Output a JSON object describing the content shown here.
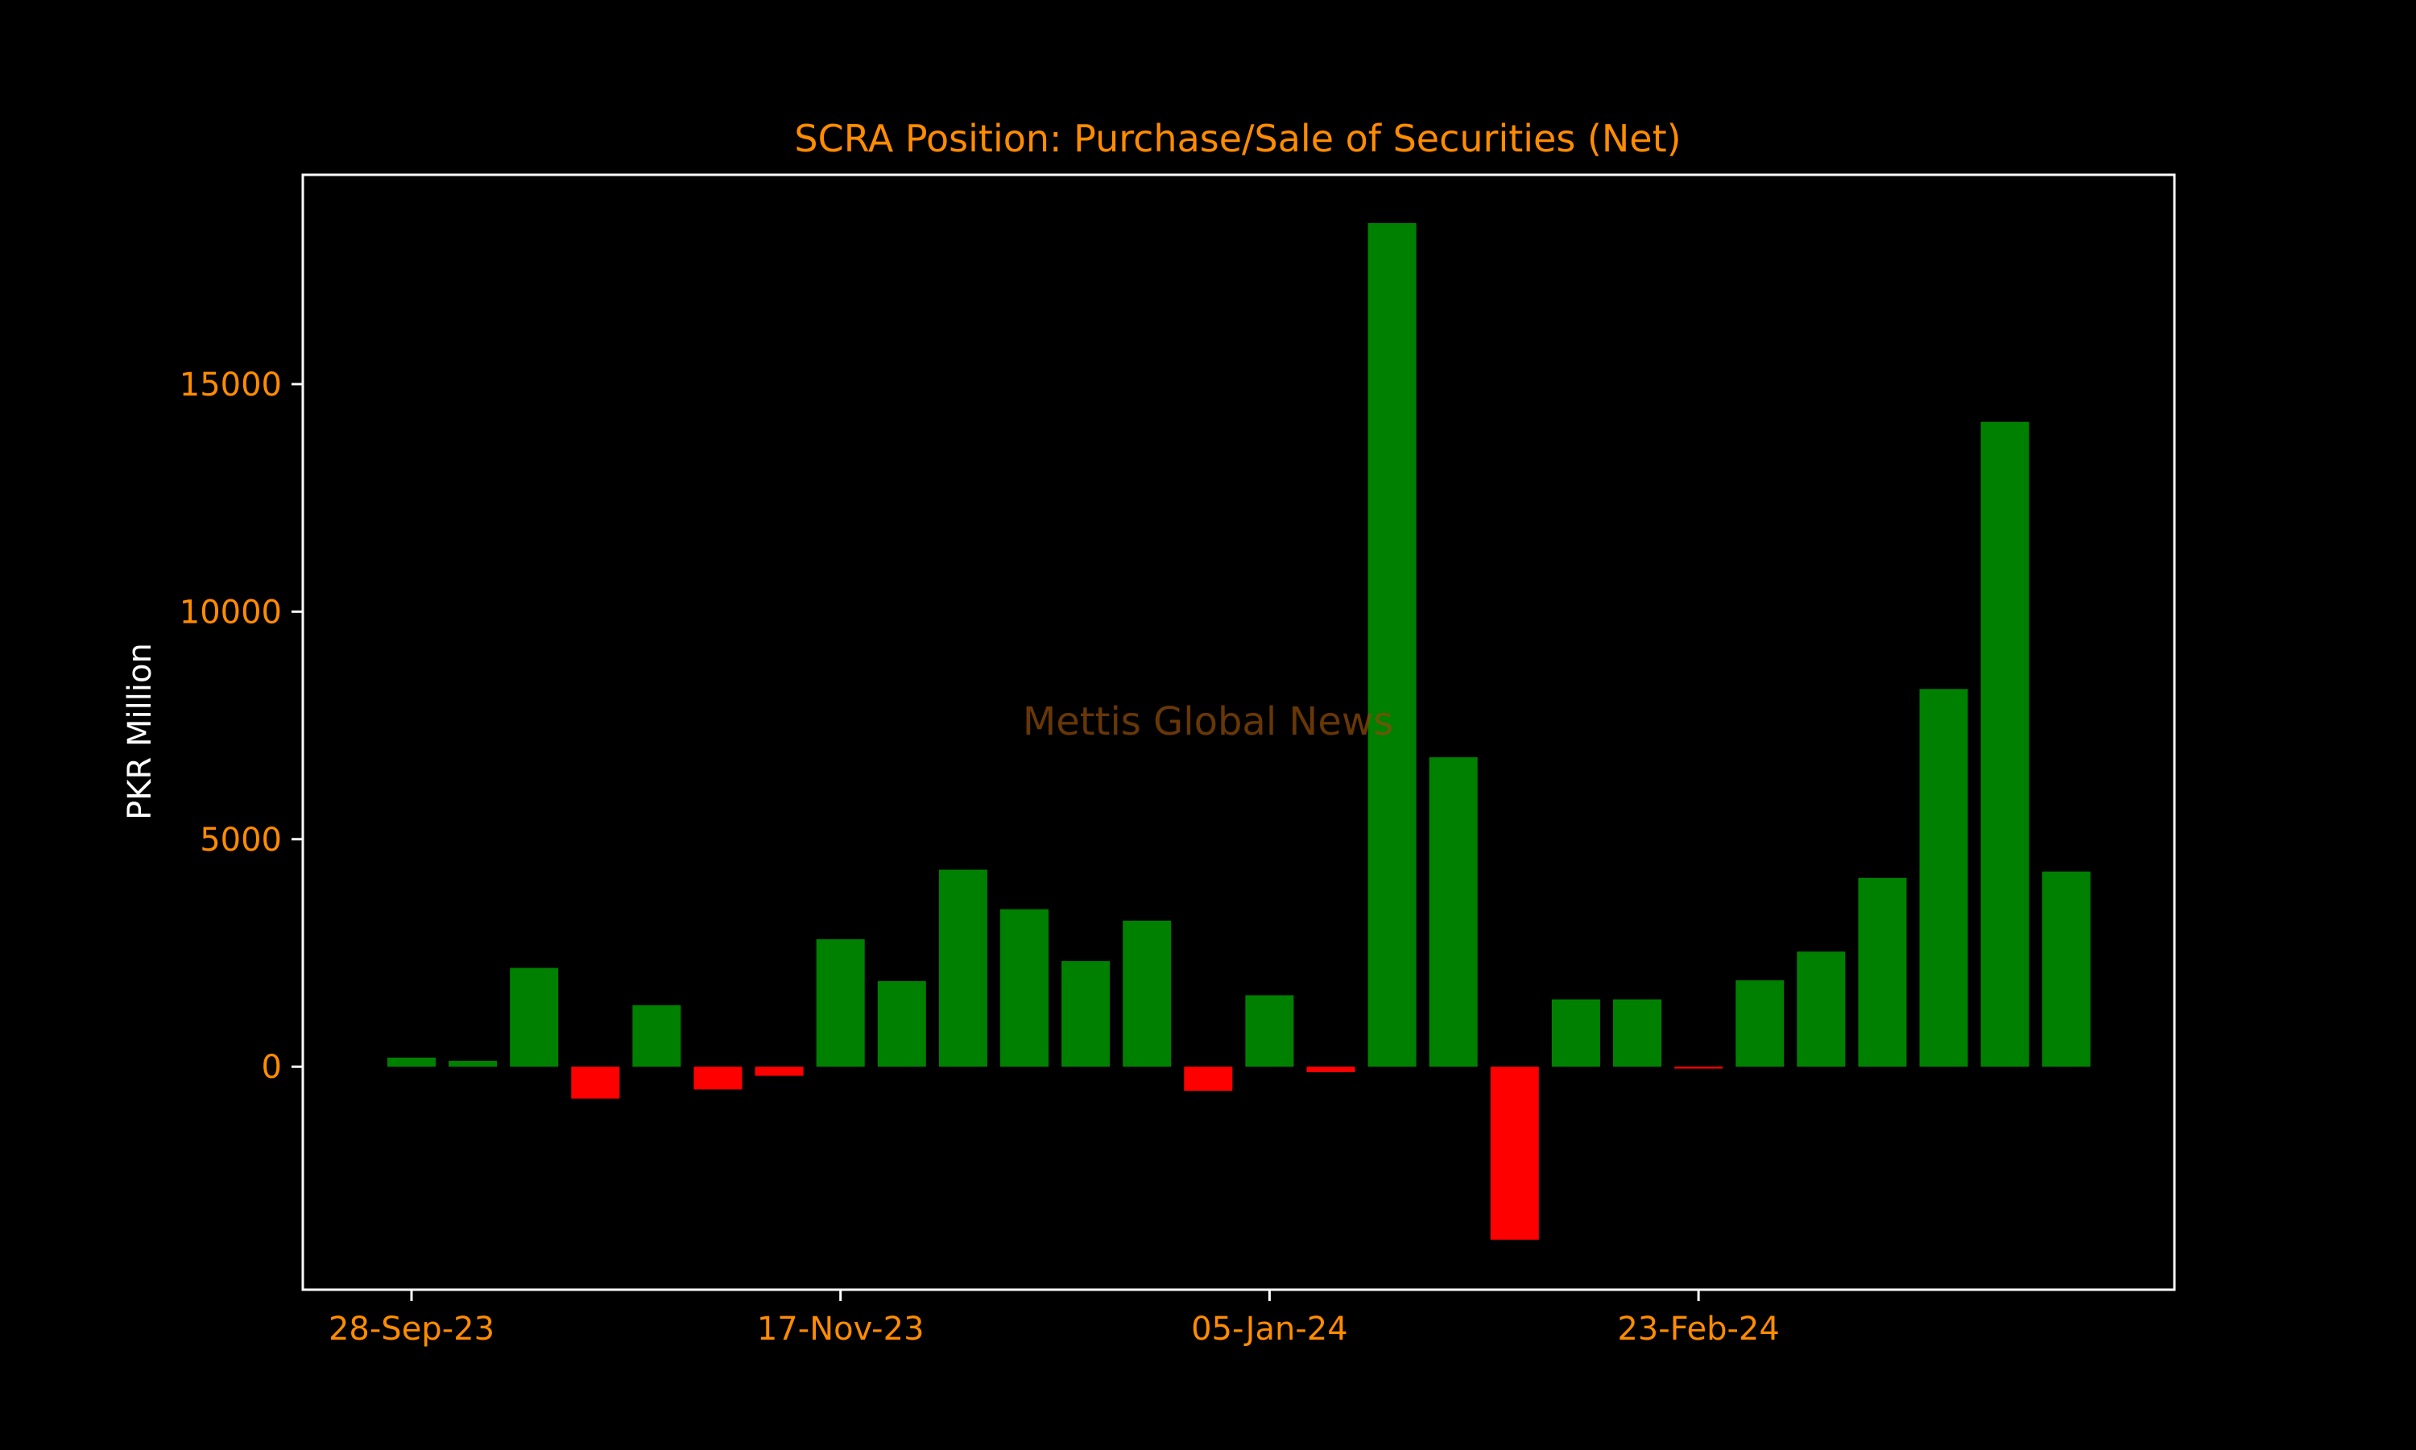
{
  "chart_data": {
    "type": "bar",
    "title": "SCRA Position: Purchase/Sale of Securities (Net)",
    "xlabel": "",
    "ylabel": "PKR Million",
    "ylim": [
      -4900,
      19600
    ],
    "yticks": [
      0,
      5000,
      10000,
      15000
    ],
    "xtick_labels": [
      {
        "label": "28-Sep-23",
        "index": 0
      },
      {
        "label": "17-Nov-23",
        "index": 7
      },
      {
        "label": "05-Jan-24",
        "index": 14
      },
      {
        "label": "23-Feb-24",
        "index": 21
      }
    ],
    "values": [
      200,
      130,
      2170,
      -700,
      1350,
      -500,
      -200,
      2800,
      1880,
      4330,
      3460,
      2320,
      3210,
      -530,
      1570,
      -120,
      18540,
      6800,
      -3800,
      1480,
      1480,
      -40,
      1900,
      2530,
      4150,
      8300,
      14170,
      4290
    ],
    "positive_color": "#008000",
    "negative_color": "#ff0000",
    "text_color": "#ff8c00",
    "axis_color": "#ffffff",
    "grid": false,
    "legend": "none",
    "watermark": "Mettis Global News"
  }
}
